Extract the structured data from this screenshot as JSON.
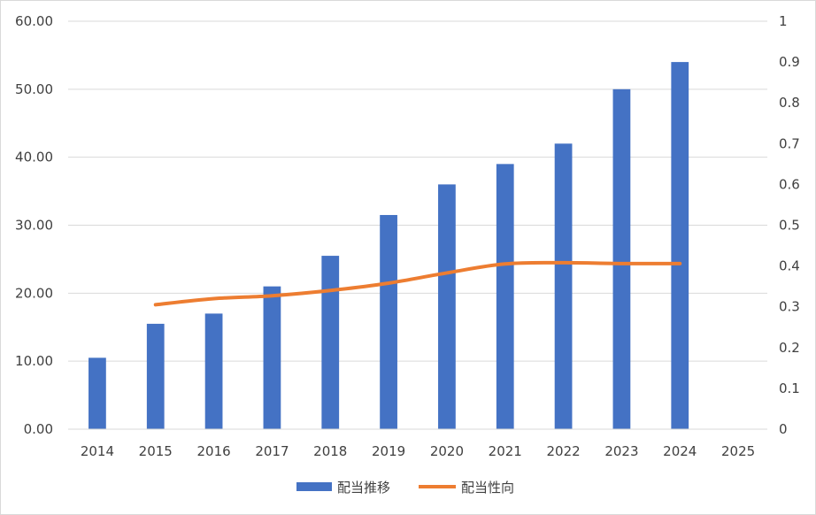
{
  "chart_data": {
    "type": "bar",
    "categories": [
      "2014",
      "2015",
      "2016",
      "2017",
      "2018",
      "2019",
      "2020",
      "2021",
      "2022",
      "2023",
      "2024",
      "2025"
    ],
    "series": [
      {
        "name": "配当推移",
        "type": "bar",
        "axis": "left",
        "color": "#4472C4",
        "values": [
          10.5,
          15.5,
          17.0,
          21.0,
          25.5,
          31.5,
          36.0,
          39.0,
          42.0,
          50.0,
          54.0,
          null
        ]
      },
      {
        "name": "配当性向",
        "type": "line",
        "axis": "right",
        "color": "#ED7D31",
        "values": [
          null,
          0.305,
          0.32,
          0.327,
          0.34,
          0.358,
          0.383,
          0.405,
          0.408,
          0.406,
          0.406,
          null
        ]
      }
    ],
    "y_left": {
      "min": 0,
      "max": 60,
      "ticks": [
        "0.00",
        "10.00",
        "20.00",
        "30.00",
        "40.00",
        "50.00",
        "60.00"
      ]
    },
    "y_right": {
      "min": 0,
      "max": 1,
      "ticks": [
        "0",
        "0.1",
        "0.2",
        "0.3",
        "0.4",
        "0.5",
        "0.6",
        "0.7",
        "0.8",
        "0.9",
        "1"
      ]
    },
    "grid": true,
    "legend_position": "bottom"
  }
}
